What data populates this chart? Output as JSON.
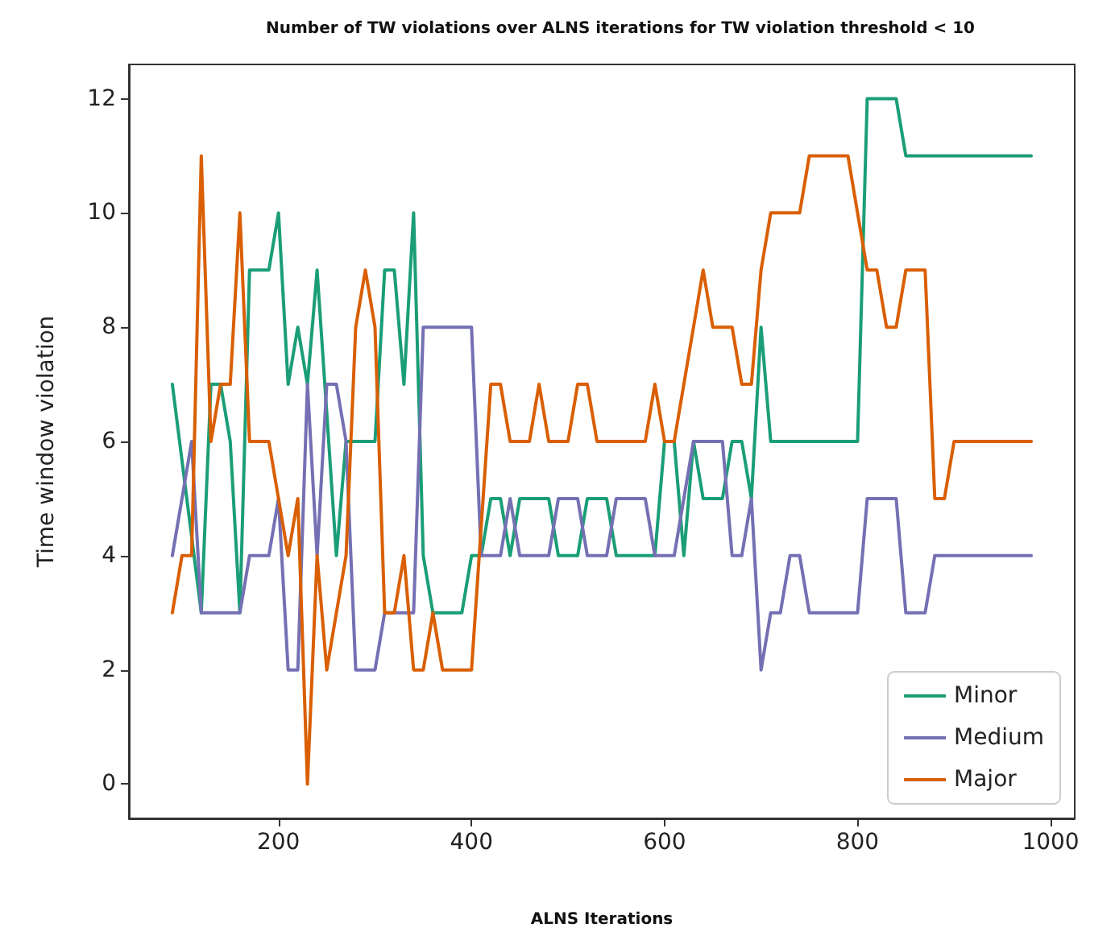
{
  "chart_data": {
    "type": "line",
    "title": "Number of TW violations over ALNS iterations for TW violation threshold < 10",
    "xlabel": "ALNS Iterations",
    "ylabel": "Time window violation",
    "xlim": [
      45,
      1025
    ],
    "xticks": [
      200,
      400,
      600,
      800,
      1000
    ],
    "ylim": [
      -0.6,
      12.6
    ],
    "yticks": [
      0,
      2,
      4,
      6,
      8,
      10,
      12
    ],
    "grid": false,
    "legend": "bottom right",
    "marker": "none",
    "line_style": "solid",
    "series": [
      {
        "name": "Minor",
        "color": "#1b9e77",
        "x": [
          90,
          120,
          130,
          140,
          150,
          160,
          170,
          190,
          200,
          210,
          220,
          230,
          240,
          260,
          270,
          300,
          310,
          320,
          330,
          340,
          350,
          360,
          390,
          400,
          410,
          420,
          430,
          440,
          450,
          480,
          490,
          510,
          520,
          540,
          550,
          580,
          590,
          600,
          610,
          620,
          630,
          640,
          660,
          670,
          680,
          690,
          700,
          710,
          800,
          810,
          840,
          850,
          980
        ],
        "values": [
          7,
          3,
          7,
          7,
          6,
          3,
          9,
          9,
          10,
          7,
          8,
          7,
          9,
          4,
          6,
          6,
          9,
          9,
          7,
          10,
          4,
          3,
          3,
          4,
          4,
          5,
          5,
          4,
          5,
          5,
          4,
          4,
          5,
          5,
          4,
          4,
          4,
          6,
          6,
          4,
          6,
          5,
          5,
          6,
          6,
          5,
          8,
          6,
          6,
          12,
          12,
          11,
          11
        ]
      },
      {
        "name": "Medium",
        "color": "#7570b3",
        "x": [
          90,
          110,
          120,
          160,
          170,
          190,
          200,
          210,
          220,
          230,
          240,
          250,
          260,
          270,
          280,
          300,
          310,
          340,
          350,
          400,
          410,
          420,
          430,
          440,
          450,
          480,
          490,
          510,
          520,
          540,
          550,
          580,
          590,
          610,
          620,
          630,
          660,
          670,
          680,
          690,
          700,
          710,
          720,
          730,
          740,
          750,
          800,
          810,
          840,
          850,
          870,
          880,
          980
        ],
        "values": [
          4,
          6,
          3,
          3,
          4,
          4,
          5,
          2,
          2,
          7,
          4,
          7,
          7,
          6,
          2,
          2,
          3,
          3,
          8,
          8,
          4,
          4,
          4,
          5,
          4,
          4,
          5,
          5,
          4,
          4,
          5,
          5,
          4,
          4,
          5,
          6,
          6,
          4,
          4,
          5,
          2,
          3,
          3,
          4,
          4,
          3,
          3,
          5,
          5,
          3,
          3,
          4,
          4
        ]
      },
      {
        "name": "Major",
        "color": "#d95f02",
        "x": [
          90,
          100,
          110,
          120,
          130,
          140,
          150,
          160,
          170,
          190,
          210,
          220,
          230,
          240,
          250,
          270,
          280,
          290,
          300,
          310,
          320,
          330,
          340,
          350,
          360,
          370,
          400,
          420,
          430,
          440,
          460,
          470,
          480,
          500,
          510,
          520,
          530,
          580,
          590,
          600,
          610,
          640,
          650,
          670,
          680,
          690,
          700,
          710,
          740,
          750,
          790,
          810,
          820,
          830,
          840,
          850,
          870,
          880,
          890,
          900,
          980
        ],
        "values": [
          3,
          4,
          4,
          11,
          6,
          7,
          7,
          10,
          6,
          6,
          4,
          5,
          0,
          4,
          2,
          4,
          8,
          9,
          8,
          3,
          3,
          4,
          2,
          2,
          3,
          2,
          2,
          7,
          7,
          6,
          6,
          7,
          6,
          6,
          7,
          7,
          6,
          6,
          7,
          6,
          6,
          9,
          8,
          8,
          7,
          7,
          9,
          10,
          10,
          11,
          11,
          9,
          9,
          8,
          8,
          9,
          9,
          5,
          5,
          6,
          6
        ]
      }
    ]
  }
}
